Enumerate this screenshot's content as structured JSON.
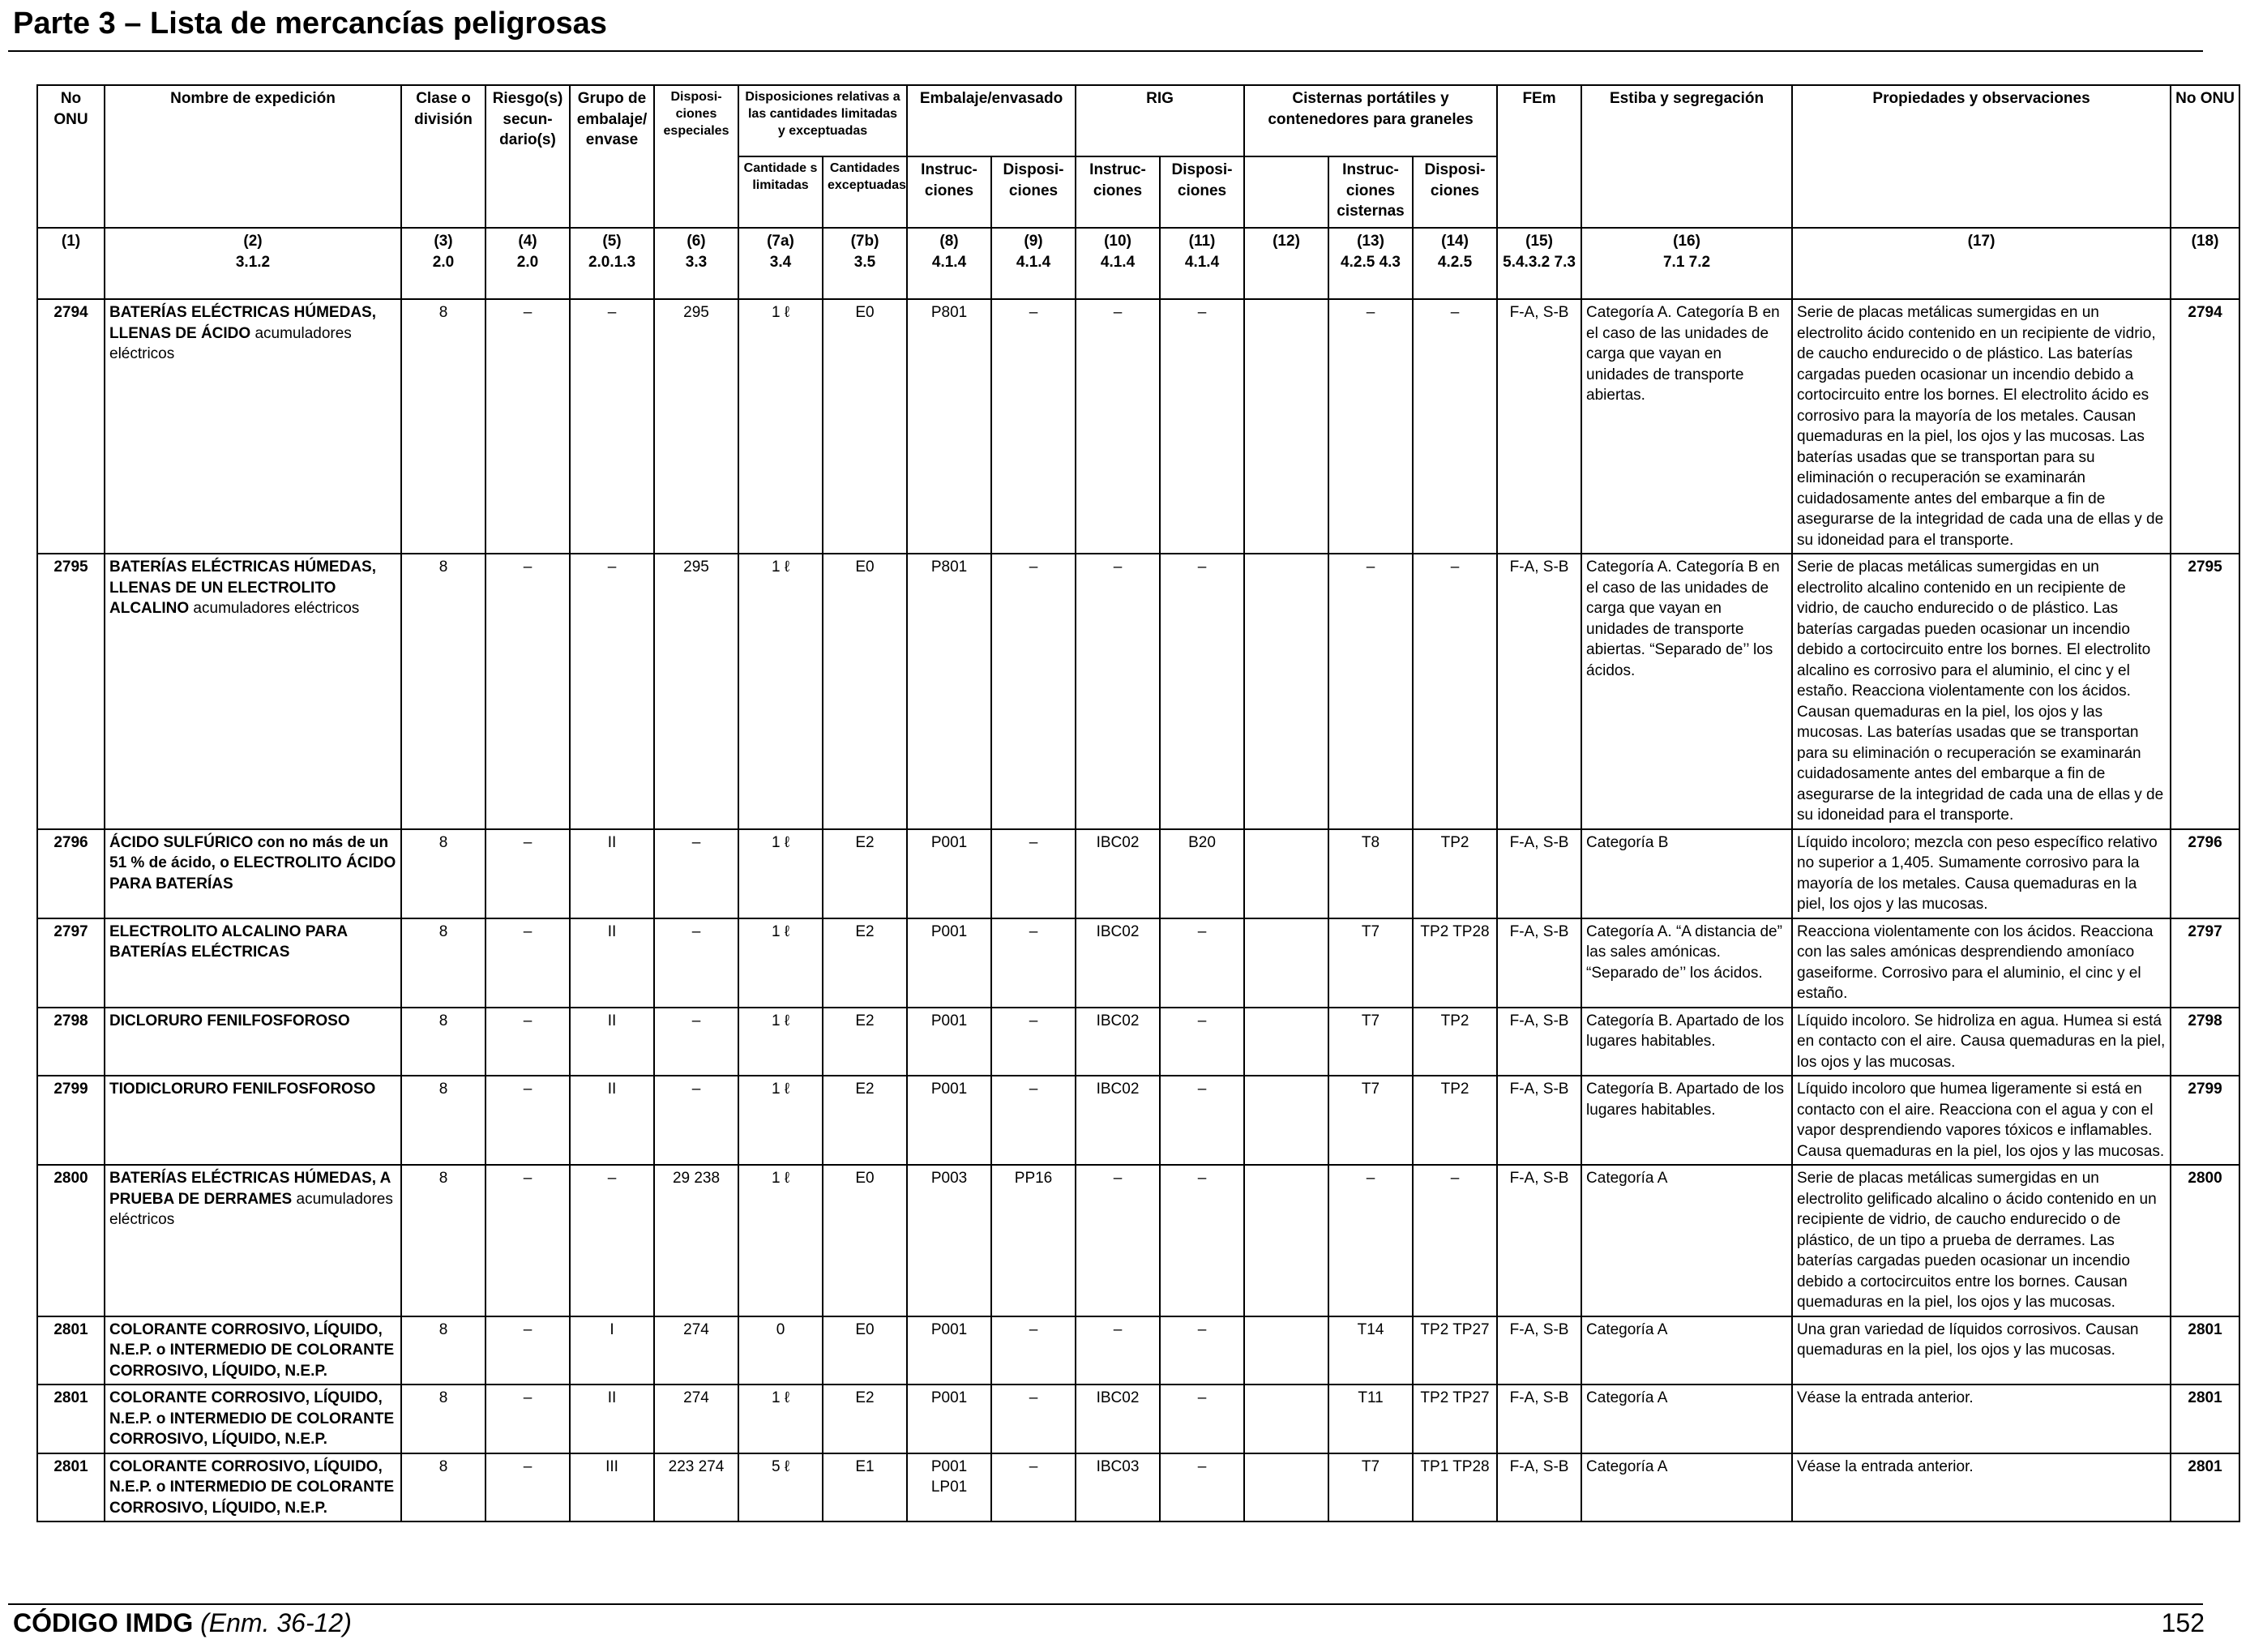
{
  "page": {
    "title": "Parte 3 – Lista de mercancías peligrosas",
    "footer_code": "CÓDIGO IMDG",
    "footer_amendment": "(Enm. 36-12)",
    "page_number": "152"
  },
  "headers": {
    "un_no": "No ONU",
    "shipping_name": "Nombre de expedición",
    "class": "Clase o división",
    "subsidiary_risk": "Riesgo(s) secun- dario(s)",
    "packing_group": "Grupo de embalaje/ envase",
    "special_provisions": "Disposi- ciones especiales",
    "limited_excepted": "Disposiciones relativas a las cantidades limitadas y exceptuadas",
    "limited_qty": "Cantidade s limitadas",
    "excepted_qty": "Cantidades exceptuadas",
    "packaging": "Embalaje/envasado",
    "pkg_instructions": "Instruc- ciones",
    "pkg_provisions": "Disposi- ciones",
    "ibc": "RIG",
    "ibc_instructions": "Instruc- ciones",
    "ibc_provisions": "Disposi- ciones",
    "tanks": "Cisternas portátiles y contenedores para graneles",
    "tank_instructions": "Instruc- ciones cisternas",
    "tank_provisions": "Disposi- ciones",
    "ems": "FEm",
    "stowage": "Estiba y segregación",
    "properties": "Propiedades y observaciones",
    "un_no_right": "No ONU"
  },
  "refs": [
    [
      "(1)",
      ""
    ],
    [
      "(2)",
      "3.1.2"
    ],
    [
      "(3)",
      "2.0"
    ],
    [
      "(4)",
      "2.0"
    ],
    [
      "(5)",
      "2.0.1.3"
    ],
    [
      "(6)",
      "3.3"
    ],
    [
      "(7a)",
      "3.4"
    ],
    [
      "(7b)",
      "3.5"
    ],
    [
      "(8)",
      "4.1.4"
    ],
    [
      "(9)",
      "4.1.4"
    ],
    [
      "(10)",
      "4.1.4"
    ],
    [
      "(11)",
      "4.1.4"
    ],
    [
      "(12)",
      ""
    ],
    [
      "(13)",
      "4.2.5 4.3"
    ],
    [
      "(14)",
      "4.2.5"
    ],
    [
      "(15)",
      "5.4.3.2 7.3"
    ],
    [
      "(16)",
      "7.1 7.2"
    ],
    [
      "(17)",
      ""
    ],
    [
      "(18)",
      ""
    ]
  ],
  "rows": [
    {
      "un": "2794",
      "name_bold": "BATERÍAS ELÉCTRICAS HÚMEDAS, LLENAS DE ÁCIDO",
      "name_rest": " acumuladores eléctricos",
      "class": "8",
      "sub": "–",
      "pg": "–",
      "sp": "295",
      "lq": "1 ℓ",
      "eq": "E0",
      "pi": "P801",
      "pp": "–",
      "ibc": "–",
      "ibcp": "–",
      "c12": "",
      "ti": "–",
      "tp": "–",
      "ems": "F-A, S-B",
      "stow": "Categoría A. Categoría B en el caso de las unidades de carga que vayan en unidades de transporte abiertas.",
      "props": "Serie de placas metálicas sumergidas en un electrolito ácido contenido en un recipiente de vidrio, de caucho endurecido o de plástico. Las baterías cargadas pueden ocasionar un incendio debido a cortocircuito entre los bornes. El electrolito ácido es corrosivo para la mayoría de los metales. Causan quemaduras en la piel, los ojos y las mucosas. Las baterías usadas que se transportan para su eliminación o recuperación se examinarán cuidadosamente antes del embarque a fin de asegurarse de la integridad de cada una de ellas y de su idoneidad para el transporte."
    },
    {
      "un": "2795",
      "name_bold": "BATERÍAS ELÉCTRICAS HÚMEDAS, LLENAS DE UN ELECTROLITO ALCALINO",
      "name_rest": " acumuladores eléctricos",
      "class": "8",
      "sub": "–",
      "pg": "–",
      "sp": "295",
      "lq": "1 ℓ",
      "eq": "E0",
      "pi": "P801",
      "pp": "–",
      "ibc": "–",
      "ibcp": "–",
      "c12": "",
      "ti": "–",
      "tp": "–",
      "ems": "F-A, S-B",
      "stow": "Categoría A. Categoría B en el caso de las unidades de carga que vayan en unidades de transporte abiertas. “Separado de’’ los ácidos.",
      "props": "Serie de placas metálicas sumergidas en un electrolito alcalino contenido en un recipiente de vidrio, de caucho endurecido o de plástico. Las baterías cargadas pueden ocasionar un incendio debido a cortocircuito entre los bornes. El electrolito alcalino es corrosivo para el aluminio, el cinc y el estaño. Reacciona violentamente con los ácidos. Causan quemaduras en la piel, los ojos y las mucosas. Las baterías usadas que se transportan para su eliminación o recuperación se examinarán cuidadosamente antes del embarque a fin de asegurarse de la integridad de cada una de ellas y de su idoneidad para el transporte."
    },
    {
      "un": "2796",
      "name_bold": "ÁCIDO SULFÚRICO con no más de un 51 % de ácido, o ELECTROLITO ÁCIDO PARA BATERÍAS",
      "name_rest": "",
      "class": "8",
      "sub": "–",
      "pg": "II",
      "sp": "–",
      "lq": "1 ℓ",
      "eq": "E2",
      "pi": "P001",
      "pp": "–",
      "ibc": "IBC02",
      "ibcp": "B20",
      "c12": "",
      "ti": "T8",
      "tp": "TP2",
      "ems": "F-A, S-B",
      "stow": "Categoría B",
      "props": "Líquido incoloro; mezcla con peso específico relativo no superior a 1,405. Sumamente corrosivo para la mayoría de los metales. Causa quemaduras en la piel, los ojos y las mucosas."
    },
    {
      "un": "2797",
      "name_bold": "ELECTROLITO ALCALINO PARA BATERÍAS ELÉCTRICAS",
      "name_rest": "",
      "class": "8",
      "sub": "–",
      "pg": "II",
      "sp": "–",
      "lq": "1 ℓ",
      "eq": "E2",
      "pi": "P001",
      "pp": "–",
      "ibc": "IBC02",
      "ibcp": "–",
      "c12": "",
      "ti": "T7",
      "tp": "TP2 TP28",
      "ems": "F-A, S-B",
      "stow": "Categoría A. “A distancia de” las sales amónicas. “Separado de’’ los ácidos.",
      "props": "Reacciona violentamente con los ácidos. Reacciona con las sales amónicas desprendiendo amoníaco gaseiforme. Corrosivo para el aluminio, el cinc y el estaño."
    },
    {
      "un": "2798",
      "name_bold": "DICLORURO FENILFOSFOROSO",
      "name_rest": "",
      "class": "8",
      "sub": "–",
      "pg": "II",
      "sp": "–",
      "lq": "1 ℓ",
      "eq": "E2",
      "pi": "P001",
      "pp": "–",
      "ibc": "IBC02",
      "ibcp": "–",
      "c12": "",
      "ti": "T7",
      "tp": "TP2",
      "ems": "F-A, S-B",
      "stow": "Categoría B. Apartado de los lugares habitables.",
      "props": "Líquido incoloro. Se hidroliza en agua. Humea si está en contacto con el aire. Causa quemaduras en la piel, los ojos y las mucosas."
    },
    {
      "un": "2799",
      "name_bold": "TIODICLORURO FENILFOSFOROSO",
      "name_rest": "",
      "class": "8",
      "sub": "–",
      "pg": "II",
      "sp": "–",
      "lq": "1 ℓ",
      "eq": "E2",
      "pi": "P001",
      "pp": "–",
      "ibc": "IBC02",
      "ibcp": "–",
      "c12": "",
      "ti": "T7",
      "tp": "TP2",
      "ems": "F-A, S-B",
      "stow": "Categoría B. Apartado de los lugares habitables.",
      "props": "Líquido incoloro que humea ligeramente si está en contacto con el aire. Reacciona con el agua y con el vapor desprendiendo vapores tóxicos e inflamables. Causa quemaduras en la piel, los ojos y las mucosas."
    },
    {
      "un": "2800",
      "name_bold": "BATERÍAS ELÉCTRICAS HÚMEDAS, A PRUEBA DE DERRAMES",
      "name_rest": " acumuladores eléctricos",
      "class": "8",
      "sub": "–",
      "pg": "–",
      "sp": "29 238",
      "lq": "1 ℓ",
      "eq": "E0",
      "pi": "P003",
      "pp": "PP16",
      "ibc": "–",
      "ibcp": "–",
      "c12": "",
      "ti": "–",
      "tp": "–",
      "ems": "F-A, S-B",
      "stow": "Categoría A",
      "props": "Serie de placas metálicas sumergidas en un electrolito gelificado alcalino o ácido contenido en un recipiente de vidrio, de caucho endurecido o de plástico, de un tipo a prueba de derrames. Las baterías cargadas pueden ocasionar un incendio debido a cortocircuitos entre los bornes. Causan quemaduras en la piel, los ojos y las mucosas."
    },
    {
      "un": "2801",
      "name_bold": "COLORANTE CORROSIVO, LÍQUIDO, N.E.P. o INTERMEDIO DE COLORANTE CORROSIVO, LÍQUIDO, N.E.P.",
      "name_rest": "",
      "class": "8",
      "sub": "–",
      "pg": "I",
      "sp": "274",
      "lq": "0",
      "eq": "E0",
      "pi": "P001",
      "pp": "–",
      "ibc": "–",
      "ibcp": "–",
      "c12": "",
      "ti": "T14",
      "tp": "TP2 TP27",
      "ems": "F-A, S-B",
      "stow": "Categoría A",
      "props": "Una gran variedad de líquidos corrosivos. Causan quemaduras en la piel, los ojos y las mucosas."
    },
    {
      "un": "2801",
      "name_bold": "COLORANTE CORROSIVO, LÍQUIDO, N.E.P. o INTERMEDIO DE COLORANTE CORROSIVO, LÍQUIDO, N.E.P.",
      "name_rest": "",
      "class": "8",
      "sub": "–",
      "pg": "II",
      "sp": "274",
      "lq": "1 ℓ",
      "eq": "E2",
      "pi": "P001",
      "pp": "–",
      "ibc": "IBC02",
      "ibcp": "–",
      "c12": "",
      "ti": "T11",
      "tp": "TP2 TP27",
      "ems": "F-A, S-B",
      "stow": "Categoría A",
      "props": "Véase la entrada anterior."
    },
    {
      "un": "2801",
      "name_bold": "COLORANTE CORROSIVO, LÍQUIDO, N.E.P. o INTERMEDIO DE COLORANTE CORROSIVO, LÍQUIDO, N.E.P.",
      "name_rest": "",
      "class": "8",
      "sub": "–",
      "pg": "III",
      "sp": "223 274",
      "lq": "5 ℓ",
      "eq": "E1",
      "pi": "P001 LP01",
      "pp": "–",
      "ibc": "IBC03",
      "ibcp": "–",
      "c12": "",
      "ti": "T7",
      "tp": "TP1 TP28",
      "ems": "F-A, S-B",
      "stow": "Categoría A",
      "props": "Véase la entrada anterior."
    }
  ]
}
